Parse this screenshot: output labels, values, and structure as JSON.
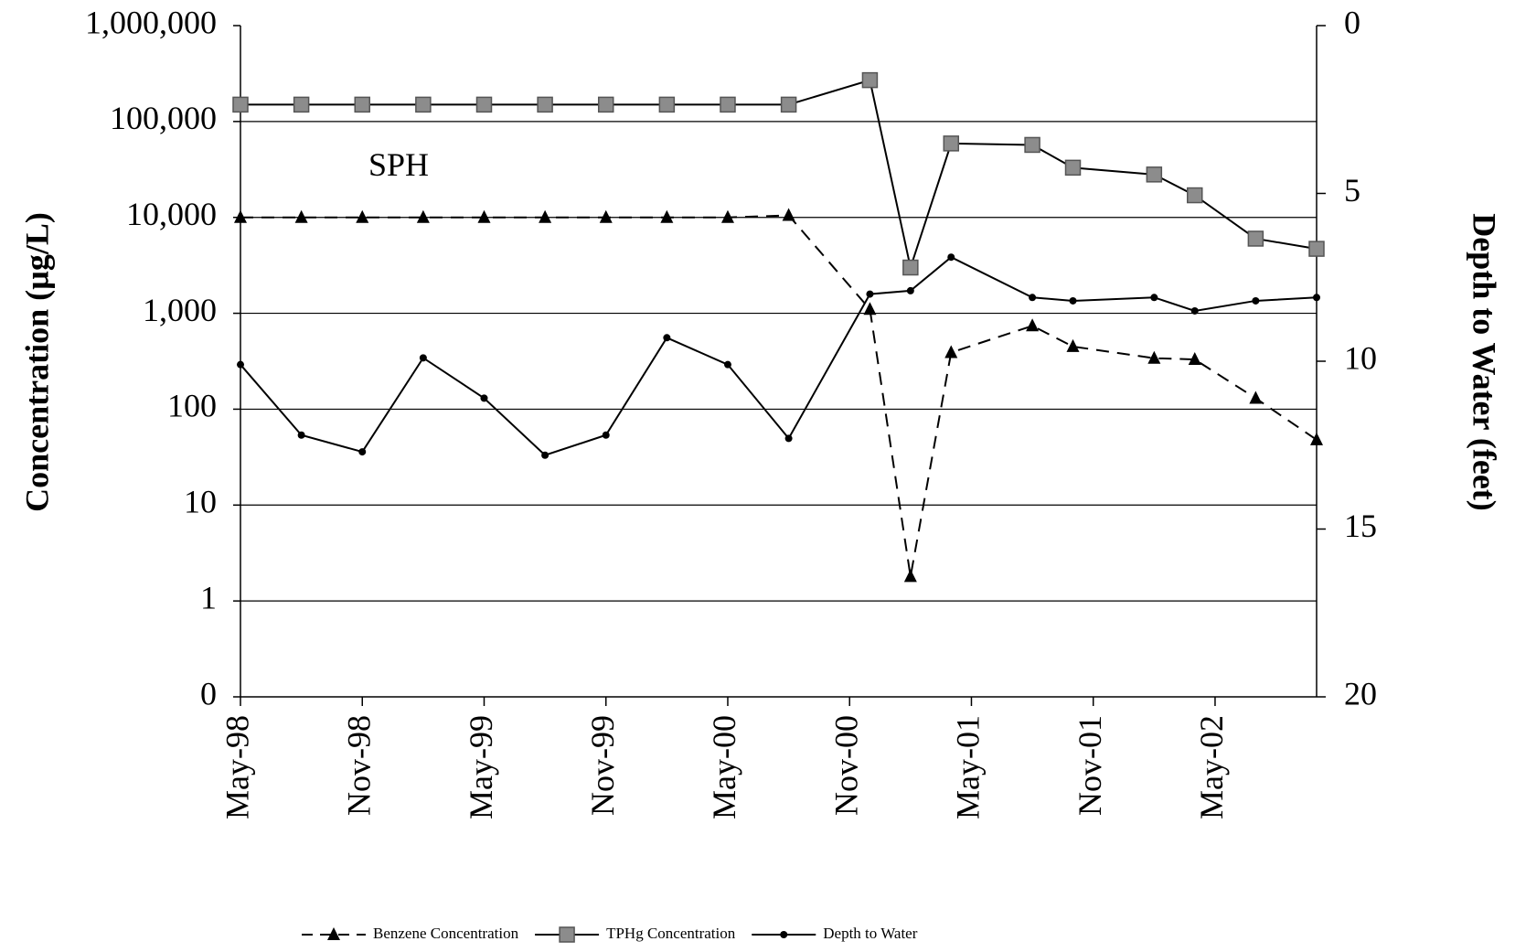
{
  "chart_data": {
    "type": "line",
    "y_label": "Concentration (µg/L)",
    "y2_label": "Depth to Water (feet)",
    "annotation": "SPH",
    "x": [
      "1998-05",
      "1998-08",
      "1998-11",
      "1999-02",
      "1999-05",
      "1999-08",
      "1999-11",
      "2000-02",
      "2000-05",
      "2000-08",
      "2000-12",
      "2001-02",
      "2001-04",
      "2001-08",
      "2001-10",
      "2002-02",
      "2002-04",
      "2002-07",
      "2002-10"
    ],
    "xlim": [
      "1998-05",
      "2002-10"
    ],
    "xticks": [
      {
        "value": "1998-05",
        "label": "May-98"
      },
      {
        "value": "1998-11",
        "label": "Nov-98"
      },
      {
        "value": "1999-05",
        "label": "May-99"
      },
      {
        "value": "1999-11",
        "label": "Nov-99"
      },
      {
        "value": "2000-05",
        "label": "May-00"
      },
      {
        "value": "2000-11",
        "label": "Nov-00"
      },
      {
        "value": "2001-05",
        "label": "May-01"
      },
      {
        "value": "2001-11",
        "label": "Nov-01"
      },
      {
        "value": "2002-05",
        "label": "May-02"
      }
    ],
    "log_y": true,
    "ylim": [
      0.1,
      1000000
    ],
    "yticks": [
      {
        "value": 0.1,
        "label": "0"
      },
      1,
      10,
      100,
      {
        "value": 1000,
        "label": "1,000"
      },
      {
        "value": 10000,
        "label": "10,000"
      },
      {
        "value": 100000,
        "label": "100,000"
      },
      {
        "value": 1000000,
        "label": "1,000,000"
      }
    ],
    "y2lim": [
      20,
      0
    ],
    "y2ticks": [
      0,
      5,
      10,
      15,
      20
    ],
    "grid": true,
    "legend": "bottom",
    "series": [
      {
        "name": "Benzene Concentration",
        "color": "#000000",
        "marker": "triangle",
        "dash": true,
        "values": [
          10000,
          10000,
          10000,
          10000,
          10000,
          10000,
          10000,
          10000,
          10000,
          10500,
          1100,
          1.8,
          390,
          740,
          450,
          340,
          330,
          130,
          48
        ]
      },
      {
        "name": "TPHg Concentration",
        "color": "#000000",
        "marker_color": "#8c8c8c",
        "marker": "square",
        "dash": false,
        "values": [
          150000,
          150000,
          150000,
          150000,
          150000,
          150000,
          150000,
          150000,
          150000,
          150000,
          270000,
          3000,
          59000,
          57000,
          33000,
          28000,
          17000,
          6000,
          4700
        ]
      },
      {
        "name": "Depth to Water",
        "color": "#000000",
        "marker": "circle",
        "dash": false,
        "axis": "y2",
        "values": [
          10.1,
          12.2,
          12.7,
          9.9,
          11.1,
          12.8,
          12.2,
          9.3,
          10.1,
          12.3,
          8.0,
          7.9,
          6.9,
          8.1,
          8.2,
          8.1,
          8.5,
          8.2,
          8.1
        ]
      }
    ]
  }
}
